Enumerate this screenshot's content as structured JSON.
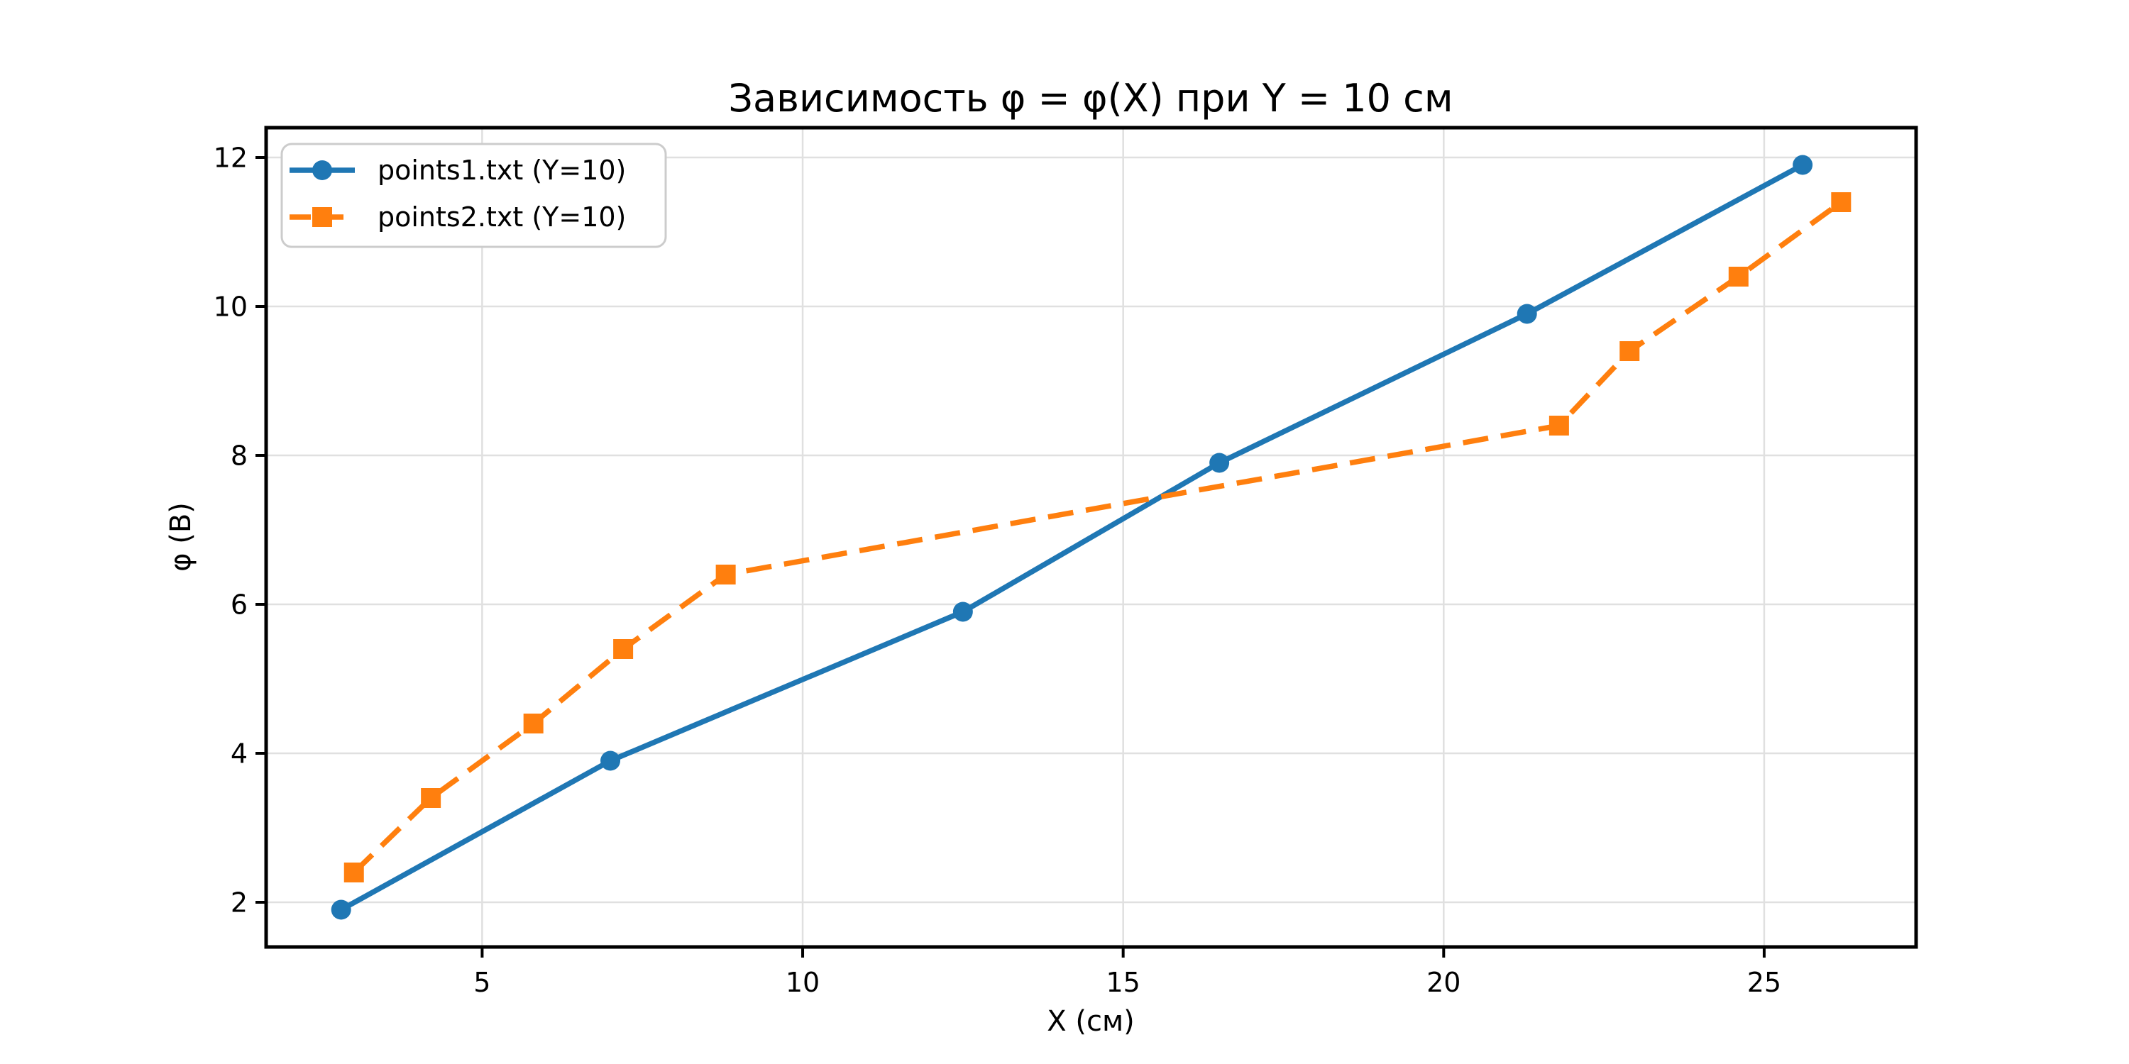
{
  "figure": {
    "background": "#ffffff",
    "text_color": "#000000",
    "grid_color": "#e0e0e0",
    "spine_color": "#000000",
    "legend_border_color": "#cccccc"
  },
  "chart_data": {
    "type": "line",
    "title": "Зависимость φ = φ(X) при Y = 10 см",
    "xlabel": "X (см)",
    "ylabel": "φ (В)",
    "xlim": [
      1.63,
      27.37
    ],
    "ylim": [
      1.4,
      12.4
    ],
    "xticks": [
      5,
      10,
      15,
      20,
      25
    ],
    "yticks": [
      2,
      4,
      6,
      8,
      10,
      12
    ],
    "grid": true,
    "legend_position": "upper left",
    "series": [
      {
        "name": "points1.txt (Y=10)",
        "color": "#1f77b4",
        "linestyle": "solid",
        "marker": "circle",
        "x": [
          2.8,
          7.0,
          12.5,
          16.5,
          21.3,
          25.6
        ],
        "y": [
          1.9,
          3.9,
          5.9,
          7.9,
          9.9,
          11.9
        ]
      },
      {
        "name": "points2.txt (Y=10)",
        "color": "#ff7f0e",
        "linestyle": "dashed",
        "marker": "square",
        "x": [
          3.0,
          4.2,
          5.8,
          7.2,
          8.8,
          21.8,
          22.9,
          24.6,
          26.2
        ],
        "y": [
          2.4,
          3.4,
          4.4,
          5.4,
          6.4,
          8.4,
          9.4,
          10.4,
          11.4
        ]
      }
    ]
  }
}
